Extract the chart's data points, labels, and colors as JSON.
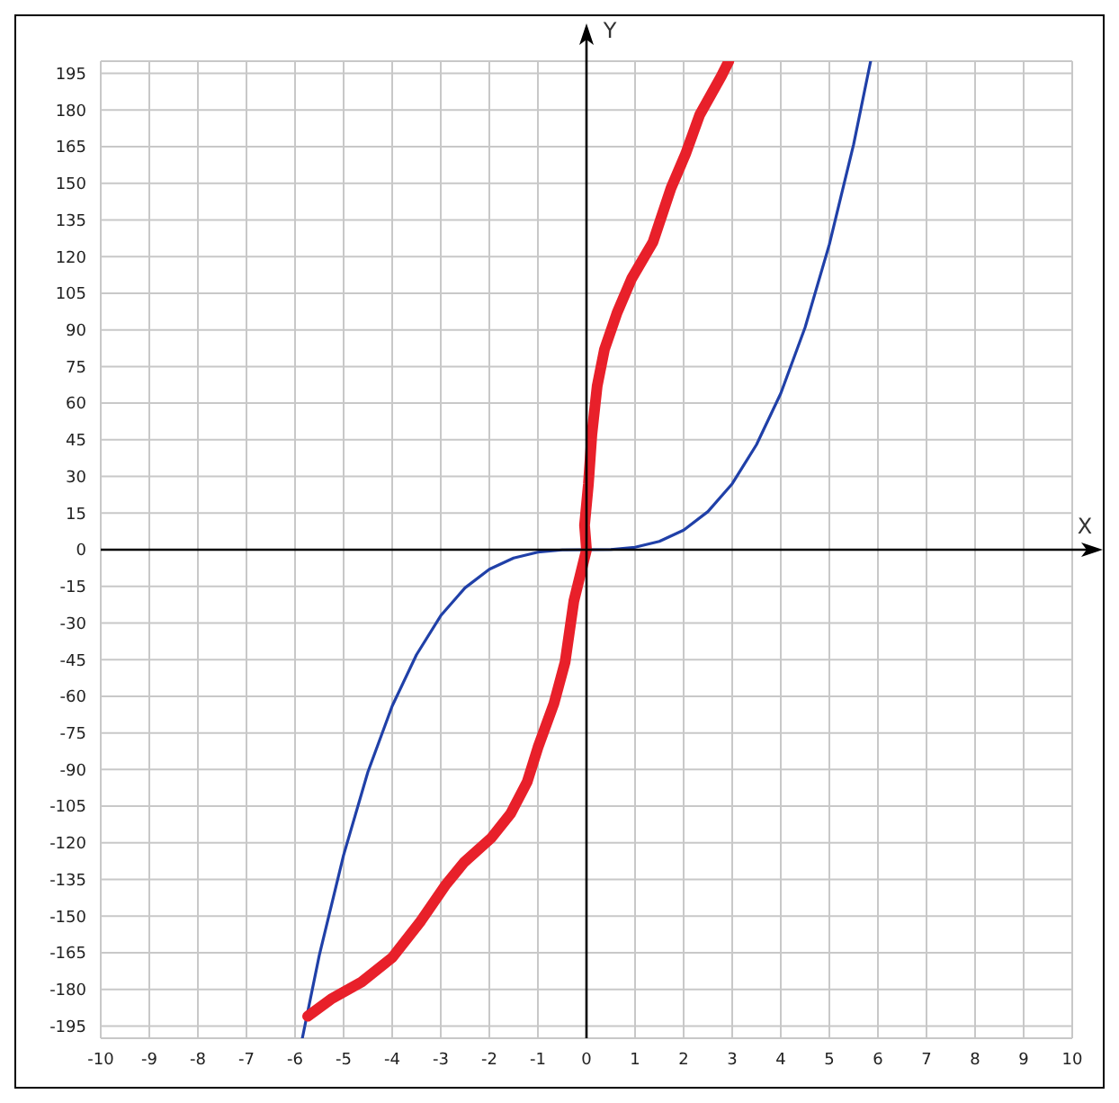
{
  "chart_data": {
    "type": "line",
    "xlabel": "X",
    "ylabel": "Y",
    "xlim": [
      -10,
      10
    ],
    "ylim": [
      -200,
      200
    ],
    "xticks": [
      -10,
      -9,
      -8,
      -7,
      -6,
      -5,
      -4,
      -3,
      -2,
      -1,
      0,
      1,
      2,
      3,
      4,
      5,
      6,
      7,
      8,
      9,
      10
    ],
    "yticks": [
      -195,
      -180,
      -165,
      -150,
      -135,
      -120,
      -105,
      -90,
      -75,
      -60,
      -45,
      -30,
      -15,
      0,
      15,
      30,
      45,
      60,
      75,
      90,
      105,
      120,
      135,
      150,
      165,
      180,
      195
    ],
    "grid": true,
    "marker": "none",
    "line_style": "solid",
    "series": [
      {
        "color": "#2040a8",
        "x": [
          -5.85,
          -5.5,
          -5,
          -4.5,
          -4,
          -3.5,
          -3,
          -2.5,
          -2,
          -1.5,
          -1,
          -0.5,
          0,
          0.5,
          1,
          1.5,
          2,
          2.5,
          3,
          3.5,
          4,
          4.5,
          5,
          5.5,
          5.85
        ],
        "values": [
          -200,
          -166,
          -125,
          -91,
          -64,
          -43,
          -27,
          -15.6,
          -8,
          -3.4,
          -1,
          -0.1,
          0,
          0.1,
          1,
          3.4,
          8,
          15.6,
          27,
          43,
          64,
          91,
          125,
          166,
          200
        ]
      },
      {
        "color": "#e8202a",
        "x": [
          -5.74,
          -5.26,
          -4.63,
          -4.0,
          -3.41,
          -2.89,
          -2.52,
          -1.96,
          -1.56,
          -1.22,
          -1.0,
          -0.67,
          -0.44,
          -0.26,
          0,
          -0.04,
          0.04,
          0.11,
          0.22,
          0.37,
          0.63,
          0.93,
          1.37,
          1.74,
          2.04,
          2.33,
          2.78,
          2.93
        ],
        "values": [
          -191,
          -184,
          -177,
          -167,
          -152,
          -137,
          -128,
          -118,
          -108,
          -95,
          -81,
          -63,
          -46,
          -21,
          0,
          10,
          27,
          47,
          67,
          82,
          97,
          111,
          126,
          148,
          162,
          178,
          194,
          200
        ]
      }
    ]
  }
}
